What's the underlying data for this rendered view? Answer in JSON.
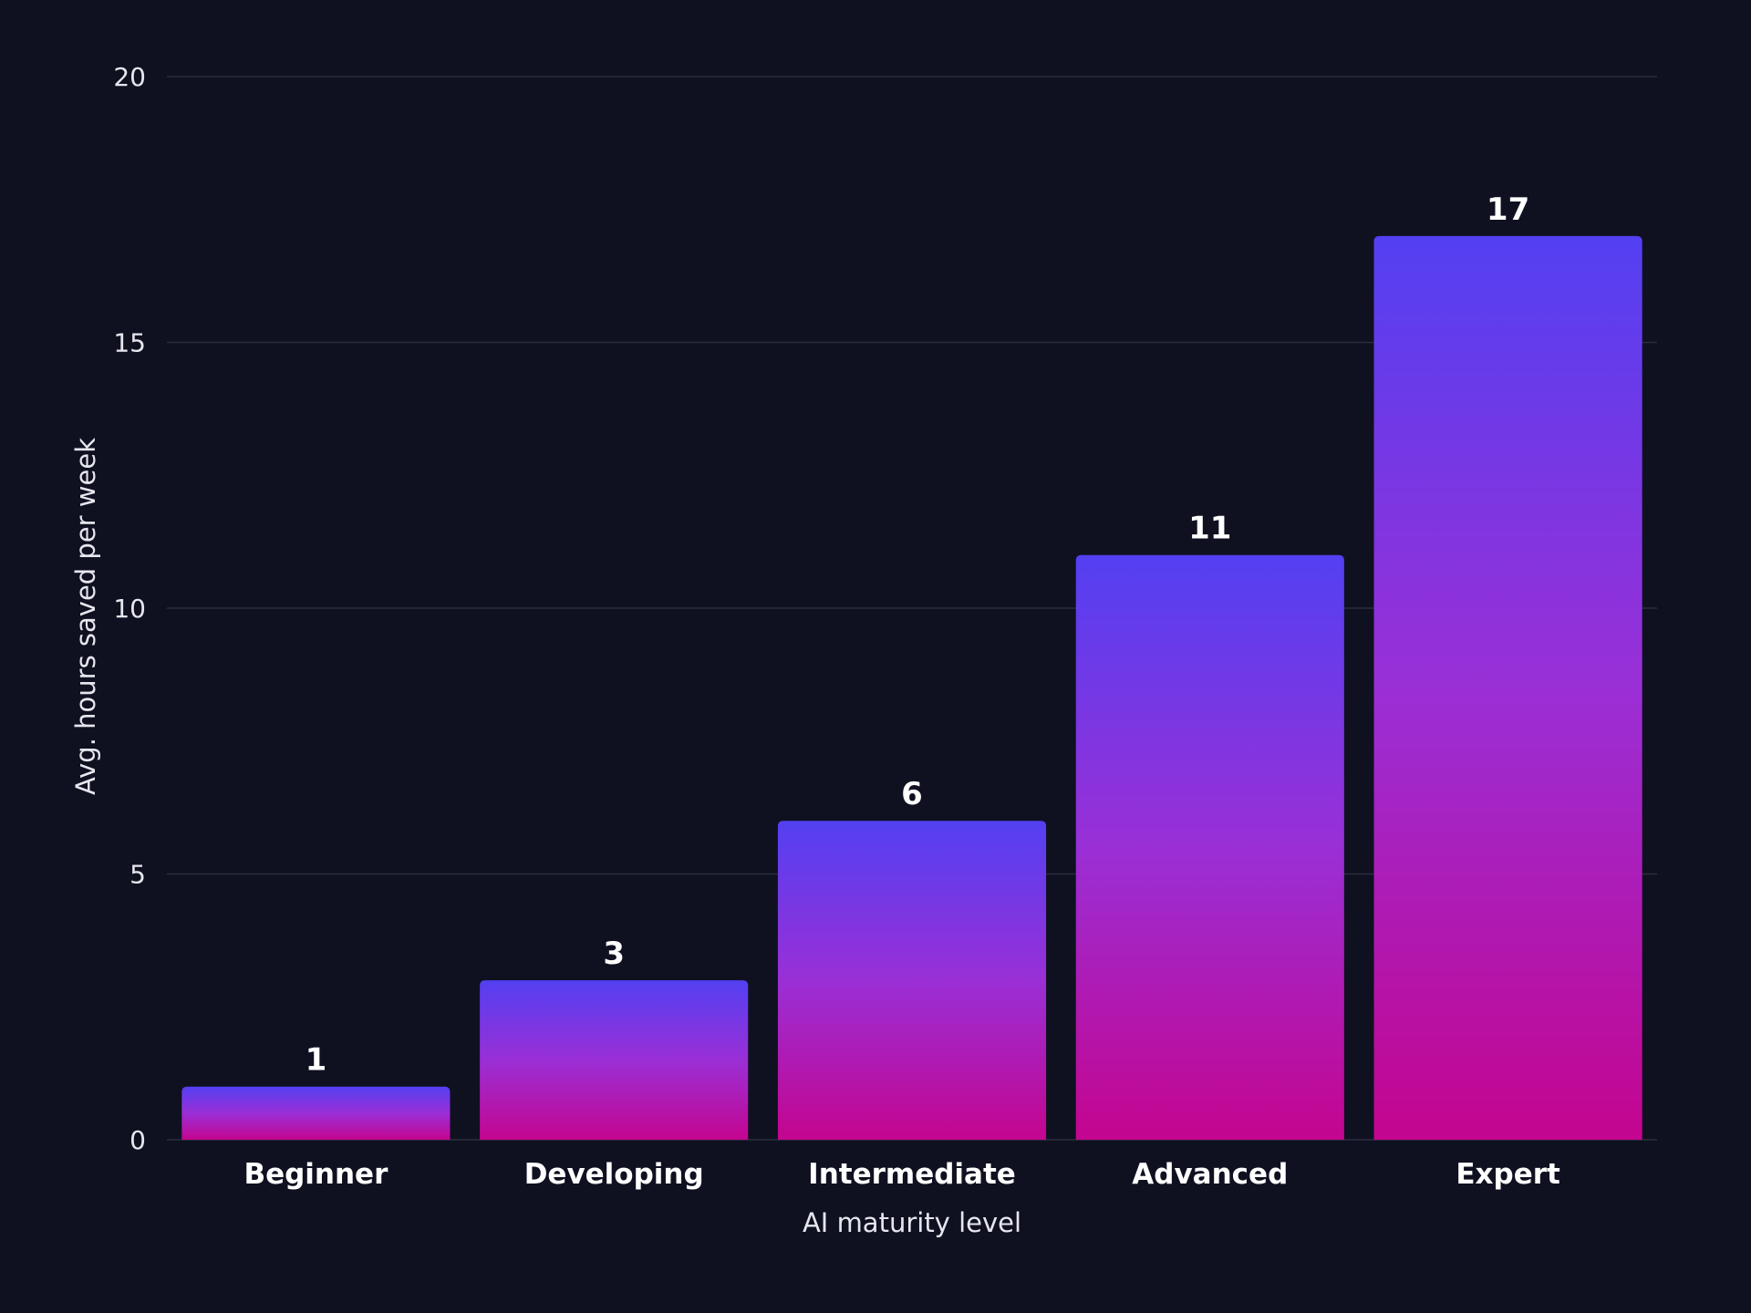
{
  "chart_data": {
    "type": "bar",
    "categories": [
      "Beginner",
      "Developing",
      "Intermediate",
      "Advanced",
      "Expert"
    ],
    "values": [
      1,
      3,
      6,
      11,
      17
    ],
    "xlabel": "AI maturity level",
    "ylabel": "Avg. hours saved per week",
    "ylim": [
      0,
      20
    ],
    "yticks": [
      0,
      5,
      10,
      15,
      20
    ],
    "grid": true,
    "legend": "none",
    "colors": {
      "background": "#0f1121",
      "bar_top": "#5340f2",
      "bar_mid": "#9a2fd6",
      "bar_bottom": "#c4058f",
      "grid": "#2a2d3e",
      "text": "#ffffff"
    }
  }
}
